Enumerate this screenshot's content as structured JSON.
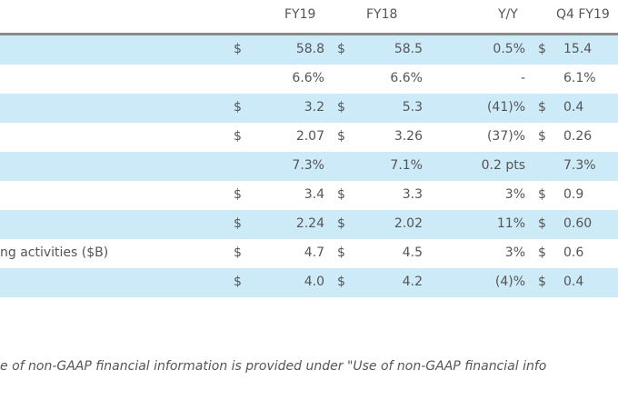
{
  "header": {
    "cols": [
      "FY19",
      "FY18",
      "Y/Y",
      "Q4 FY19"
    ]
  },
  "rows": [
    {
      "label": "",
      "d1": "$",
      "fy19": "58.8",
      "d2": "$",
      "fy18": "58.5",
      "yy": "0.5%",
      "d3": "$",
      "q4": "15.4"
    },
    {
      "label": "",
      "d1": "",
      "fy19": "6.6%",
      "d2": "",
      "fy18": "6.6%",
      "yy": "-",
      "d3": "",
      "q4": "6.1%"
    },
    {
      "label": "",
      "d1": "$",
      "fy19": "3.2",
      "d2": "$",
      "fy18": "5.3",
      "yy": "(41)%",
      "d3": "$",
      "q4": "0.4"
    },
    {
      "label": "",
      "d1": "$",
      "fy19": "2.07",
      "d2": "$",
      "fy18": "3.26",
      "yy": "(37)%",
      "d3": "$",
      "q4": "0.26"
    },
    {
      "label": "",
      "d1": "",
      "fy19": "7.3%",
      "d2": "",
      "fy18": "7.1%",
      "yy": "0.2 pts",
      "d3": "",
      "q4": "7.3%"
    },
    {
      "label": "",
      "d1": "$",
      "fy19": "3.4",
      "d2": "$",
      "fy18": "3.3",
      "yy": "3%",
      "d3": "$",
      "q4": "0.9"
    },
    {
      "label": "",
      "d1": "$",
      "fy19": "2.24",
      "d2": "$",
      "fy18": "2.02",
      "yy": "11%",
      "d3": "$",
      "q4": "0.60"
    },
    {
      "label": "ng activities ($B)",
      "d1": "$",
      "fy19": "4.7",
      "d2": "$",
      "fy18": "4.5",
      "yy": "3%",
      "d3": "$",
      "q4": "0.6"
    },
    {
      "label": "",
      "d1": "$",
      "fy19": "4.0",
      "d2": "$",
      "fy18": "4.2",
      "yy": "(4)%",
      "d3": "$",
      "q4": "0.4"
    }
  ],
  "footnote": "e of non-GAAP financial information is provided under \"Use of non-GAAP financial info",
  "colors": {
    "band": "#cdeaf8",
    "rule": "#8a8a8a",
    "text": "#555555"
  }
}
